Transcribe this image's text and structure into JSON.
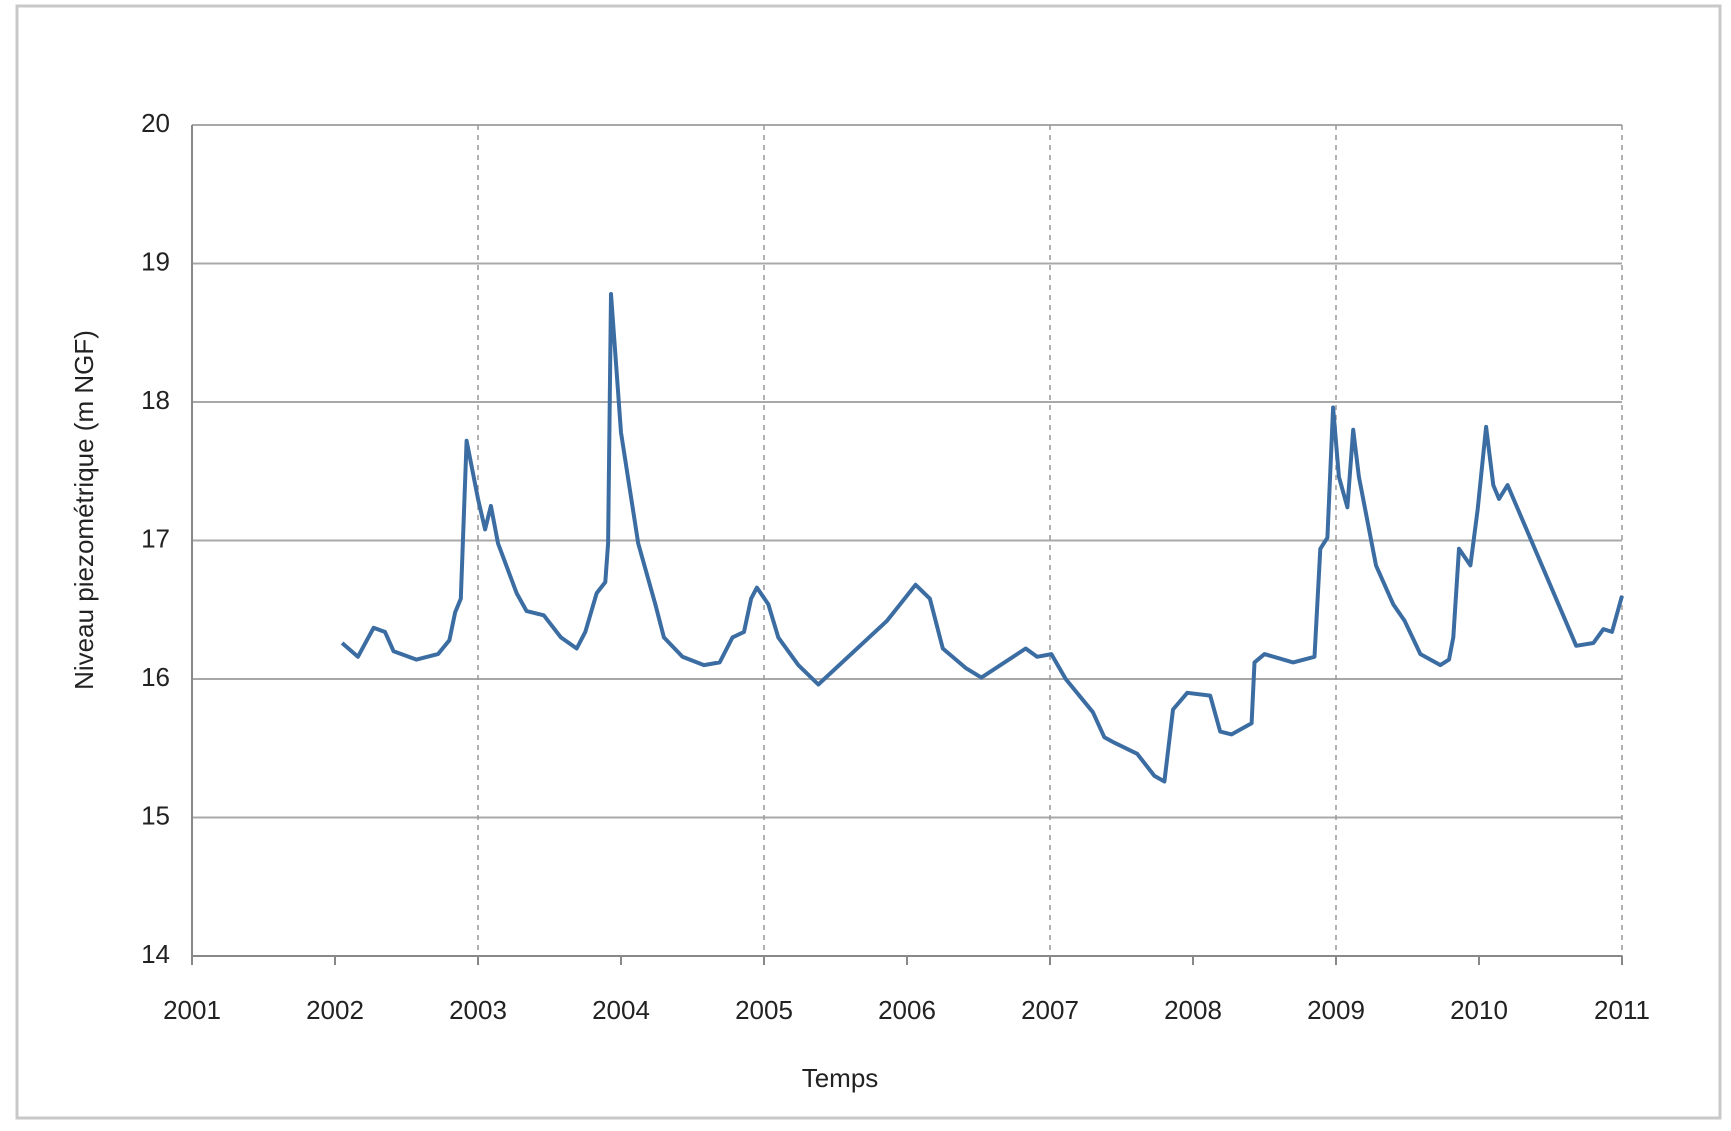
{
  "chart_data": {
    "type": "line",
    "x_label": "Temps",
    "y_label": "Niveau piezométrique (m NGF)",
    "color": "#3b6da3",
    "x": [
      2002.05,
      2002.16,
      2002.27,
      2002.35,
      2002.41,
      2002.57,
      2002.72,
      2002.8,
      2002.84,
      2002.88,
      2002.92,
      2003.0,
      2003.05,
      2003.09,
      2003.14,
      2003.27,
      2003.34,
      2003.46,
      2003.58,
      2003.69,
      2003.75,
      2003.83,
      2003.89,
      2003.91,
      2003.93,
      2004.0,
      2004.12,
      2004.24,
      2004.3,
      2004.43,
      2004.58,
      2004.69,
      2004.78,
      2004.86,
      2004.91,
      2004.95,
      2005.03,
      2005.1,
      2005.24,
      2005.38,
      2005.86,
      2006.06,
      2006.16,
      2006.25,
      2006.41,
      2006.52,
      2006.83,
      2006.91,
      2007.01,
      2007.11,
      2007.3,
      2007.38,
      2007.45,
      2007.61,
      2007.73,
      2007.8,
      2007.86,
      2007.96,
      2008.12,
      2008.19,
      2008.27,
      2008.41,
      2008.43,
      2008.5,
      2008.7,
      2008.85,
      2008.89,
      2008.94,
      2008.98,
      2009.02,
      2009.08,
      2009.12,
      2009.16,
      2009.28,
      2009.4,
      2009.48,
      2009.59,
      2009.73,
      2009.79,
      2009.82,
      2009.86,
      2009.94,
      2009.99,
      2010.05,
      2010.1,
      2010.14,
      2010.2,
      2010.68,
      2010.8,
      2010.87,
      2010.93,
      2011.0
    ],
    "values": [
      16.26,
      16.16,
      16.37,
      16.34,
      16.2,
      16.14,
      16.18,
      16.28,
      16.48,
      16.58,
      17.72,
      17.3,
      17.08,
      17.25,
      16.98,
      16.62,
      16.49,
      16.46,
      16.3,
      16.22,
      16.34,
      16.62,
      16.7,
      16.98,
      18.78,
      17.78,
      16.98,
      16.54,
      16.3,
      16.16,
      16.1,
      16.12,
      16.3,
      16.34,
      16.58,
      16.66,
      16.54,
      16.3,
      16.1,
      15.96,
      16.42,
      16.68,
      16.58,
      16.22,
      16.08,
      16.01,
      16.22,
      16.16,
      16.18,
      16.0,
      15.76,
      15.58,
      15.54,
      15.46,
      15.3,
      15.26,
      15.78,
      15.9,
      15.88,
      15.62,
      15.6,
      15.68,
      16.12,
      16.18,
      16.12,
      16.16,
      16.94,
      17.02,
      17.96,
      17.46,
      17.24,
      17.8,
      17.46,
      16.82,
      16.54,
      16.42,
      16.18,
      16.1,
      16.14,
      16.3,
      16.94,
      16.82,
      17.22,
      17.82,
      17.4,
      17.3,
      17.4,
      16.24,
      16.26,
      16.36,
      16.34,
      16.6
    ],
    "xlim": [
      2001,
      2011
    ],
    "xticks": [
      2001,
      2002,
      2003,
      2004,
      2005,
      2006,
      2007,
      2008,
      2009,
      2010,
      2011
    ],
    "ylim": [
      14,
      20
    ],
    "yticks": [
      14,
      15,
      16,
      17,
      18,
      19,
      20
    ],
    "grid": true,
    "xgrid_step": 2
  }
}
